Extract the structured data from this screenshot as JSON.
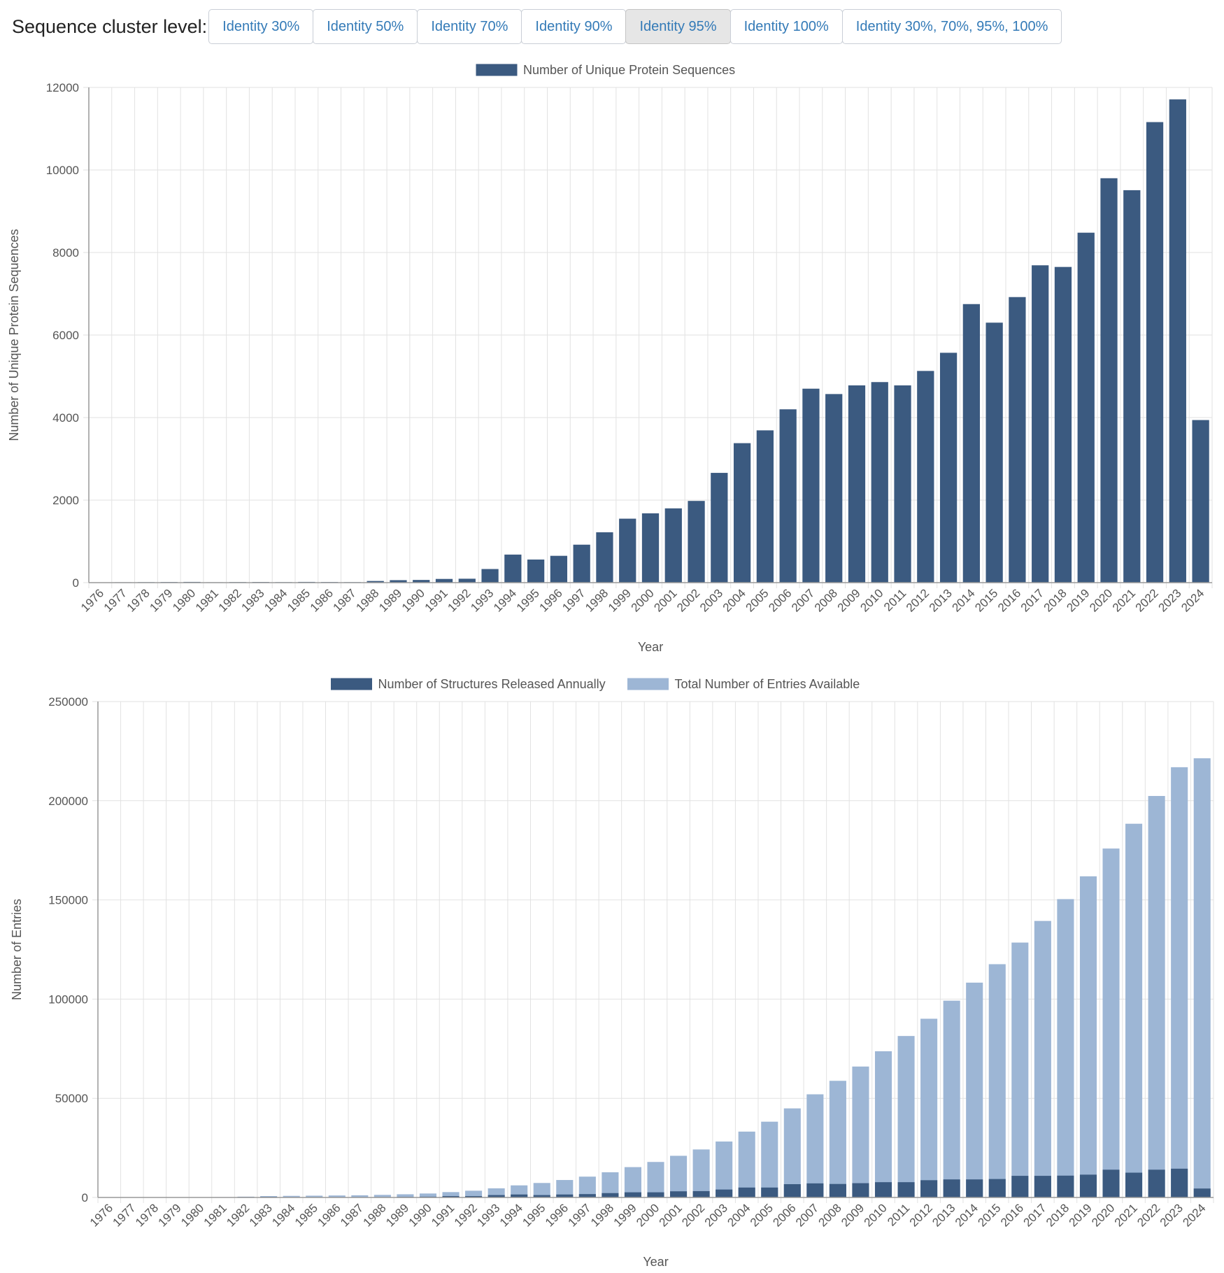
{
  "toolbar": {
    "label": "Sequence cluster level:",
    "buttons": [
      "Identity 30%",
      "Identity 50%",
      "Identity 70%",
      "Identity 90%",
      "Identity 95%",
      "Identity 100%",
      "Identity 30%, 70%, 95%, 100%"
    ],
    "active_index": 4
  },
  "colors": {
    "dark_bar": "#3b5a80",
    "light_bar": "#9db6d5",
    "grid": "#e2e2e2",
    "axis": "#999999",
    "text": "#555555",
    "link": "#337ab7"
  },
  "chart_data": [
    {
      "type": "bar",
      "categories": [
        "1976",
        "1977",
        "1978",
        "1979",
        "1980",
        "1981",
        "1982",
        "1983",
        "1984",
        "1985",
        "1986",
        "1987",
        "1988",
        "1989",
        "1990",
        "1991",
        "1992",
        "1993",
        "1994",
        "1995",
        "1996",
        "1997",
        "1998",
        "1999",
        "2000",
        "2001",
        "2002",
        "2003",
        "2004",
        "2005",
        "2006",
        "2007",
        "2008",
        "2009",
        "2010",
        "2011",
        "2012",
        "2013",
        "2014",
        "2015",
        "2016",
        "2017",
        "2018",
        "2019",
        "2020",
        "2021",
        "2022",
        "2023",
        "2024"
      ],
      "series": [
        {
          "name": "Number of Unique Protein Sequences",
          "values": [
            5,
            10,
            12,
            15,
            18,
            10,
            14,
            16,
            12,
            18,
            15,
            12,
            40,
            60,
            65,
            90,
            95,
            330,
            680,
            560,
            650,
            920,
            1220,
            1550,
            1680,
            1800,
            1980,
            2660,
            3380,
            3690,
            4200,
            4700,
            4570,
            4780,
            4860,
            4780,
            5130,
            5570,
            6750,
            6300,
            6920,
            7690,
            7650,
            8480,
            9800,
            9510,
            11160,
            11710,
            3940
          ]
        }
      ],
      "xlabel": "Year",
      "ylabel": "Number of Unique Protein Sequences",
      "ylim": [
        0,
        12000
      ],
      "yticks": [
        0,
        2000,
        4000,
        6000,
        8000,
        10000,
        12000
      ],
      "grid": true,
      "legend_position": "top"
    },
    {
      "type": "bar",
      "categories": [
        "1976",
        "1977",
        "1978",
        "1979",
        "1980",
        "1981",
        "1982",
        "1983",
        "1984",
        "1985",
        "1986",
        "1987",
        "1988",
        "1989",
        "1990",
        "1991",
        "1992",
        "1993",
        "1994",
        "1995",
        "1996",
        "1997",
        "1998",
        "1999",
        "2000",
        "2001",
        "2002",
        "2003",
        "2004",
        "2005",
        "2006",
        "2007",
        "2008",
        "2009",
        "2010",
        "2011",
        "2012",
        "2013",
        "2014",
        "2015",
        "2016",
        "2017",
        "2018",
        "2019",
        "2020",
        "2021",
        "2022",
        "2023",
        "2024"
      ],
      "series": [
        {
          "name": "Number of Structures Released Annually",
          "values": [
            10,
            20,
            30,
            40,
            40,
            60,
            250,
            300,
            120,
            110,
            100,
            110,
            200,
            300,
            400,
            700,
            700,
            1200,
            1500,
            1200,
            1500,
            1700,
            2200,
            2600,
            2600,
            3100,
            3200,
            4000,
            5000,
            5000,
            6700,
            7100,
            6800,
            7200,
            7700,
            7700,
            8700,
            9100,
            9100,
            9300,
            10900,
            10900,
            11000,
            11500,
            14000,
            12500,
            14000,
            14500,
            4500
          ]
        },
        {
          "name": "Total Number of Entries Available",
          "values": [
            13,
            30,
            60,
            100,
            140,
            200,
            400,
            700,
            800,
            900,
            1000,
            1100,
            1300,
            1600,
            2000,
            2700,
            3400,
            4600,
            6100,
            7300,
            8800,
            10500,
            12700,
            15300,
            17900,
            21000,
            24200,
            28200,
            33200,
            38200,
            44900,
            52000,
            58800,
            66000,
            73700,
            81400,
            90100,
            99200,
            108300,
            117600,
            128500,
            139400,
            150400,
            161900,
            175900,
            188400,
            202400,
            216900,
            221400
          ]
        }
      ],
      "xlabel": "Year",
      "ylabel": "Number of Entries",
      "ylim": [
        0,
        250000
      ],
      "yticks": [
        0,
        50000,
        100000,
        150000,
        200000,
        250000
      ],
      "grid": true,
      "legend_position": "top"
    }
  ]
}
